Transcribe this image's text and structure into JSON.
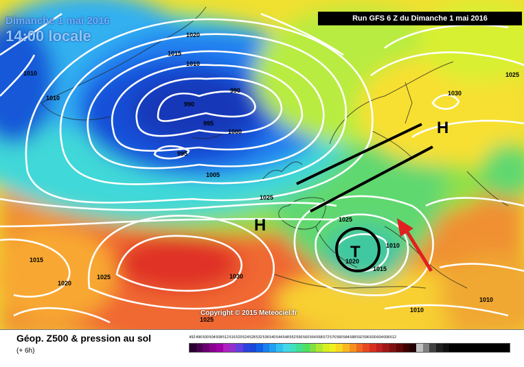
{
  "header": {
    "date": "Dimanche 1 mai 2016",
    "time": "14:00 locale",
    "run": "Run GFS 6 Z du Dimanche 1 mai 2016"
  },
  "copyright": "Copyright © 2015 Meteociel.fr",
  "map": {
    "pressure_labels": [
      {
        "text": "1020"
      },
      {
        "text": "1015"
      },
      {
        "text": "1010"
      },
      {
        "text": "1010"
      },
      {
        "text": "1010"
      },
      {
        "text": "990"
      },
      {
        "text": "990"
      },
      {
        "text": "995"
      },
      {
        "text": "1000"
      },
      {
        "text": "995"
      },
      {
        "text": "1005"
      },
      {
        "text": "1025"
      },
      {
        "text": "1030"
      },
      {
        "text": "1025"
      },
      {
        "text": "1025"
      },
      {
        "text": "1010"
      },
      {
        "text": "1020"
      },
      {
        "text": "1015"
      },
      {
        "text": "1015"
      },
      {
        "text": "1020"
      },
      {
        "text": "1025"
      },
      {
        "text": "1030"
      },
      {
        "text": "1025"
      },
      {
        "text": "1010"
      },
      {
        "text": "1010"
      }
    ],
    "system_labels": [
      {
        "text": "H"
      },
      {
        "text": "H"
      },
      {
        "text": "T"
      }
    ],
    "colors": {
      "low_pressure": "#1040d0",
      "high_pressure": "#f05020",
      "annotation_lines": "#000000",
      "arrow": "#e02020"
    }
  },
  "footer": {
    "title": "Géop. Z500 & pression au sol",
    "subtitle": "(+ 6h)",
    "scale": [
      {
        "label": "492",
        "color": "#2a0030"
      },
      {
        "label": "496",
        "color": "#4a0050"
      },
      {
        "label": "500",
        "color": "#6a0070"
      },
      {
        "label": "504",
        "color": "#8a0090"
      },
      {
        "label": "508",
        "color": "#a000a8"
      },
      {
        "label": "512",
        "color": "#b020c0"
      },
      {
        "label": "516",
        "color": "#9030d0"
      },
      {
        "label": "520",
        "color": "#6040e0"
      },
      {
        "label": "524",
        "color": "#3040e0"
      },
      {
        "label": "528",
        "color": "#1848d8"
      },
      {
        "label": "532",
        "color": "#1060e8"
      },
      {
        "label": "536",
        "color": "#1880f0"
      },
      {
        "label": "540",
        "color": "#20a0f0"
      },
      {
        "label": "544",
        "color": "#30c0f0"
      },
      {
        "label": "548",
        "color": "#40d8e8"
      },
      {
        "label": "552",
        "color": "#40e0c0"
      },
      {
        "label": "556",
        "color": "#40e090"
      },
      {
        "label": "560",
        "color": "#50e060"
      },
      {
        "label": "564",
        "color": "#80e040"
      },
      {
        "label": "568",
        "color": "#b0e830"
      },
      {
        "label": "572",
        "color": "#d8f020"
      },
      {
        "label": "576",
        "color": "#f0f020"
      },
      {
        "label": "580",
        "color": "#f8d820"
      },
      {
        "label": "584",
        "color": "#f8b820"
      },
      {
        "label": "588",
        "color": "#f89020"
      },
      {
        "label": "592",
        "color": "#f06820"
      },
      {
        "label": "596",
        "color": "#e84820"
      },
      {
        "label": "600",
        "color": "#d83020"
      },
      {
        "label": "604",
        "color": "#c02020"
      },
      {
        "label": "608",
        "color": "#a01818"
      },
      {
        "label": "612",
        "color": "#801010"
      },
      {
        "label": "",
        "color": "#600808"
      },
      {
        "label": "",
        "color": "#400000"
      },
      {
        "label": "",
        "color": "#200000"
      },
      {
        "label": "",
        "color": "#c0c0c0"
      },
      {
        "label": "",
        "color": "#808080"
      },
      {
        "label": "",
        "color": "#404040"
      },
      {
        "label": "",
        "color": "#202020"
      },
      {
        "label": "",
        "color": "#101010"
      },
      {
        "label": "",
        "color": "#000000"
      },
      {
        "label": "",
        "color": "#000000"
      },
      {
        "label": "",
        "color": "#000000"
      },
      {
        "label": "",
        "color": "#000000"
      },
      {
        "label": "",
        "color": "#000000"
      },
      {
        "label": "",
        "color": "#000000"
      },
      {
        "label": "",
        "color": "#000000"
      },
      {
        "label": "",
        "color": "#000000"
      },
      {
        "label": "",
        "color": "#000000"
      }
    ]
  }
}
